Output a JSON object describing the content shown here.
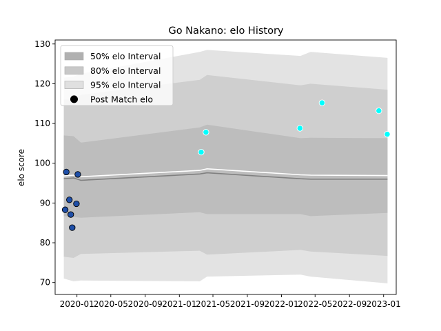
{
  "chart_data": {
    "type": "area",
    "title": "Go Nakano: elo History",
    "xlabel": "",
    "ylabel": "elo score",
    "ylim": [
      67,
      131
    ],
    "xlim": [
      "2019-10-15",
      "2023-02-15"
    ],
    "y_ticks": [
      70,
      80,
      90,
      100,
      110,
      120,
      130
    ],
    "x_ticks": [
      {
        "date": "2020-01-01",
        "label": "2020-01"
      },
      {
        "date": "2020-05-01",
        "label": "2020-05"
      },
      {
        "date": "2020-09-01",
        "label": "2020-09"
      },
      {
        "date": "2021-01-01",
        "label": "2021-01"
      },
      {
        "date": "2021-05-01",
        "label": "2021-05"
      },
      {
        "date": "2021-09-01",
        "label": "2021-09"
      },
      {
        "date": "2022-01-01",
        "label": "2022-01"
      },
      {
        "date": "2022-05-01",
        "label": "2022-05"
      },
      {
        "date": "2022-09-01",
        "label": "2022-09"
      },
      {
        "date": "2023-01-01",
        "label": "2023-01"
      }
    ],
    "x": [
      "2019-11-15",
      "2019-12-20",
      "2020-01-15",
      "2021-03-15",
      "2021-04-10",
      "2022-03-10",
      "2022-04-15",
      "2023-01-15"
    ],
    "series": [
      {
        "name": "95% elo Interval",
        "role": "band",
        "color": "#e3e3e3",
        "lower": [
          71.0,
          70.3,
          70.5,
          70.3,
          71.5,
          72.0,
          71.5,
          69.8
        ],
        "upper": [
          121.5,
          121.8,
          122.5,
          128.0,
          128.5,
          127.0,
          128.0,
          126.5
        ]
      },
      {
        "name": "80% elo Interval",
        "role": "band",
        "color": "#cfcfcf",
        "lower": [
          76.5,
          76.2,
          77.2,
          78.0,
          77.0,
          78.2,
          77.8,
          76.7
        ],
        "upper": [
          116.0,
          116.0,
          117.2,
          121.0,
          122.2,
          119.6,
          120.0,
          118.5
        ]
      },
      {
        "name": "50% elo Interval",
        "role": "band",
        "color": "#bdbdbd",
        "lower": [
          86.7,
          86.5,
          86.3,
          87.7,
          87.2,
          87.2,
          86.7,
          87.5
        ],
        "upper": [
          107.0,
          106.8,
          105.2,
          109.0,
          109.7,
          106.3,
          106.4,
          106.3
        ]
      },
      {
        "name": "",
        "role": "median",
        "color": "#808080",
        "values": [
          96.1,
          96.3,
          95.7,
          97.3,
          97.6,
          96.1,
          96.0,
          96.0
        ]
      },
      {
        "name": "",
        "role": "mean",
        "color": "#ffffff",
        "values": [
          96.8,
          97.0,
          96.6,
          98.2,
          98.6,
          97.1,
          97.0,
          96.9
        ]
      }
    ],
    "points": {
      "name": "Post Match elo",
      "data": [
        {
          "date": "2019-11-20",
          "y": 88.3,
          "color": "#1f4fa8"
        },
        {
          "date": "2019-11-24",
          "y": 97.8,
          "color": "#1f4fa8"
        },
        {
          "date": "2019-12-05",
          "y": 90.8,
          "color": "#1f4fa8"
        },
        {
          "date": "2019-12-10",
          "y": 87.1,
          "color": "#1f4fa8"
        },
        {
          "date": "2019-12-15",
          "y": 83.8,
          "color": "#1f4fa8"
        },
        {
          "date": "2019-12-30",
          "y": 89.8,
          "color": "#1f4fa8"
        },
        {
          "date": "2020-01-04",
          "y": 97.2,
          "color": "#1f4fa8"
        },
        {
          "date": "2021-03-20",
          "y": 102.8,
          "color": "#00ffff"
        },
        {
          "date": "2021-04-06",
          "y": 107.8,
          "color": "#00ffff"
        },
        {
          "date": "2022-03-08",
          "y": 108.8,
          "color": "#00ffff"
        },
        {
          "date": "2022-05-26",
          "y": 115.2,
          "color": "#00ffff"
        },
        {
          "date": "2022-12-15",
          "y": 113.2,
          "color": "#00ffff"
        },
        {
          "date": "2023-01-14",
          "y": 107.3,
          "color": "#00ffff"
        }
      ]
    },
    "legend": {
      "placement": "top-left",
      "entries": [
        {
          "label": "50% elo Interval",
          "kind": "patch",
          "color": "#b0b0b0"
        },
        {
          "label": "80% elo Interval",
          "kind": "patch",
          "color": "#c8c8c8"
        },
        {
          "label": "95% elo Interval",
          "kind": "patch",
          "color": "#e0e0e0"
        },
        {
          "label": "Post Match elo",
          "kind": "marker",
          "color": "#000000"
        }
      ]
    },
    "grid": false
  }
}
